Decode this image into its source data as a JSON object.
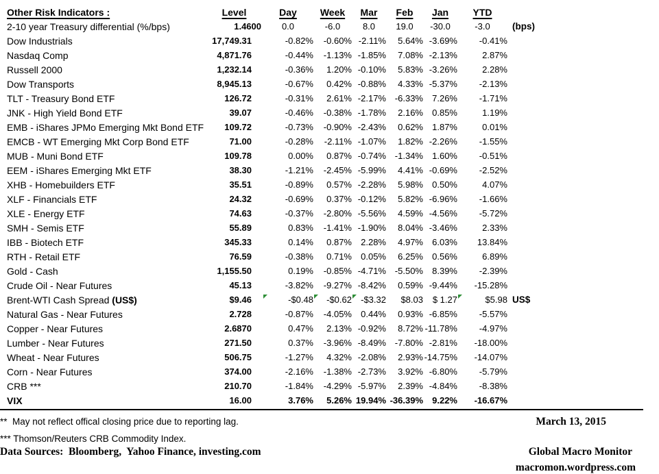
{
  "colors": {
    "marker_green": "#2e8f37",
    "text": "#000000",
    "background": "#ffffff"
  },
  "table": {
    "headers": [
      {
        "key": "indicators",
        "label": "Other Risk Indicators :"
      },
      {
        "key": "level",
        "label": "Level"
      },
      {
        "key": "day",
        "label": "Day"
      },
      {
        "key": "week",
        "label": "Week"
      },
      {
        "key": "mar",
        "label": "Mar"
      },
      {
        "key": "feb",
        "label": "Feb"
      },
      {
        "key": "jan",
        "label": "Jan"
      },
      {
        "key": "ytd",
        "label": "YTD"
      },
      {
        "key": "unit",
        "label": ""
      }
    ],
    "rows": [
      {
        "label": "2-10 year Treasury differential (%/bps)",
        "values": [
          "1.4600",
          "0.0",
          "-6.0",
          "8.0",
          "19.0",
          "-30.0",
          "-3.0"
        ],
        "note": "(bps)",
        "center": true
      },
      {
        "label": "Dow Industrials",
        "values": [
          "17,749.31",
          "-0.82%",
          "-0.60%",
          "-2.11%",
          "5.64%",
          "-3.69%",
          "-0.41%"
        ]
      },
      {
        "label": "Nasdaq Comp",
        "values": [
          "4,871.76",
          "-0.44%",
          "-1.13%",
          "-1.85%",
          "7.08%",
          "-2.13%",
          "2.87%"
        ]
      },
      {
        "label": "Russell 2000",
        "values": [
          "1,232.14",
          "-0.36%",
          "1.20%",
          "-0.10%",
          "5.83%",
          "-3.26%",
          "2.28%"
        ]
      },
      {
        "label": "Dow Transports",
        "values": [
          "8,945.13",
          "-0.67%",
          "0.42%",
          "-0.88%",
          "4.33%",
          "-5.37%",
          "-2.13%"
        ]
      },
      {
        "label": "TLT - Treasury Bond ETF",
        "values": [
          "126.72",
          "-0.31%",
          "2.61%",
          "-2.17%",
          "-6.33%",
          "7.26%",
          "-1.71%"
        ]
      },
      {
        "label": "JNK - High Yield Bond ETF",
        "values": [
          "39.07",
          "-0.46%",
          "-0.38%",
          "-1.78%",
          "2.16%",
          "0.85%",
          "1.19%"
        ]
      },
      {
        "label": "EMB - iShares JPMo Emerging Mkt Bond ETF",
        "values": [
          "109.72",
          "-0.73%",
          "-0.90%",
          "-2.43%",
          "0.62%",
          "1.87%",
          "0.01%"
        ]
      },
      {
        "label": "EMCB - WT Emerging Mkt Corp Bond ETF",
        "values": [
          "71.00",
          "-0.28%",
          "-2.11%",
          "-1.07%",
          "1.82%",
          "-2.26%",
          "-1.55%"
        ]
      },
      {
        "label": "MUB - Muni Bond ETF",
        "values": [
          "109.78",
          "0.00%",
          "0.87%",
          "-0.74%",
          "-1.34%",
          "1.60%",
          "-0.51%"
        ]
      },
      {
        "label": "EEM - iShares Emerging Mkt ETF",
        "values": [
          "38.30",
          "-1.21%",
          "-2.45%",
          "-5.99%",
          "4.41%",
          "-0.69%",
          "-2.52%"
        ]
      },
      {
        "label": "XHB - Homebuilders ETF",
        "values": [
          "35.51",
          "-0.89%",
          "0.57%",
          "-2.28%",
          "5.98%",
          "0.50%",
          "4.07%"
        ]
      },
      {
        "label": "XLF - Financials ETF",
        "values": [
          "24.32",
          "-0.69%",
          "0.37%",
          "-0.12%",
          "5.82%",
          "-6.96%",
          "-1.66%"
        ]
      },
      {
        "label": "XLE - Energy ETF",
        "values": [
          "74.63",
          "-0.37%",
          "-2.80%",
          "-5.56%",
          "4.59%",
          "-4.56%",
          "-5.72%"
        ]
      },
      {
        "label": "SMH - Semis ETF",
        "values": [
          "55.89",
          "0.83%",
          "-1.41%",
          "-1.90%",
          "8.04%",
          "-3.46%",
          "2.33%"
        ]
      },
      {
        "label": "IBB - Biotech ETF",
        "values": [
          "345.33",
          "0.14%",
          "0.87%",
          "2.28%",
          "4.97%",
          "6.03%",
          "13.84%"
        ]
      },
      {
        "label": "RTH - Retail ETF",
        "values": [
          "76.59",
          "-0.38%",
          "0.71%",
          "0.05%",
          "6.25%",
          "0.56%",
          "6.89%"
        ]
      },
      {
        "label": "Gold - Cash",
        "values": [
          "1,155.50",
          "0.19%",
          "-0.85%",
          "-4.71%",
          "-5.50%",
          "8.39%",
          "-2.39%"
        ]
      },
      {
        "label": "Crude Oil - Near Futures",
        "values": [
          "45.13",
          "-3.82%",
          "-9.27%",
          "-8.42%",
          "0.59%",
          "-9.44%",
          "-15.28%"
        ]
      },
      {
        "label": "Brent-WTI Cash Spread ",
        "label_bold": "(US$)",
        "values": [
          "$9.46",
          "-$0.48",
          "-$0.62",
          "-$3.32",
          "$8.03",
          "$ 1.27",
          "$5.98"
        ],
        "note": "US$",
        "markers": [
          1,
          2,
          3,
          6
        ]
      },
      {
        "label": "Natural Gas - Near Futures",
        "values": [
          "2.728",
          "-0.87%",
          "-4.05%",
          "0.44%",
          "0.93%",
          "-6.85%",
          "-5.57%"
        ]
      },
      {
        "label": "Copper - Near Futures",
        "values": [
          "2.6870",
          "0.47%",
          "2.13%",
          "-0.92%",
          "8.72%",
          "-11.78%",
          "-4.97%"
        ]
      },
      {
        "label": "Lumber - Near Futures",
        "values": [
          "271.50",
          "0.37%",
          "-3.96%",
          "-8.49%",
          "-7.80%",
          "-2.81%",
          "-18.00%"
        ]
      },
      {
        "label": "Wheat - Near Futures",
        "values": [
          "506.75",
          "-1.27%",
          "4.32%",
          "-2.08%",
          "2.93%",
          "-14.75%",
          "-14.07%"
        ]
      },
      {
        "label": "Corn - Near Futures",
        "values": [
          "374.00",
          "-2.16%",
          "-1.38%",
          "-2.73%",
          "3.92%",
          "-6.80%",
          "-5.79%"
        ]
      },
      {
        "label": "CRB ***",
        "values": [
          "210.70",
          "-1.84%",
          "-4.29%",
          "-5.97%",
          "2.39%",
          "-4.84%",
          "-8.38%"
        ]
      },
      {
        "label": "VIX",
        "values": [
          "16.00",
          "3.76%",
          "5.26%",
          "19.94%",
          "-36.39%",
          "9.22%",
          "-16.67%"
        ],
        "bold": true
      }
    ]
  },
  "footer": {
    "note_lag": "**  May not reflect offical closing price due to reporting lag.",
    "date": "March 13, 2015",
    "note_crb": "*** Thomson/Reuters CRB Commodity Index.",
    "sources": "Data Sources:  Bloomberg,  Yahoo Finance, investing.com",
    "brand": "Global Macro Monitor",
    "url": "macromon.wordpress.com"
  }
}
